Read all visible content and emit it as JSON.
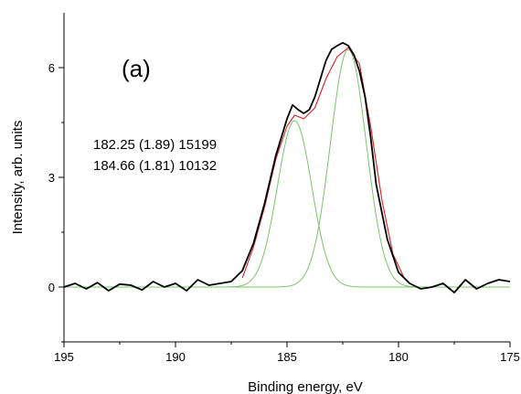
{
  "chart_data": {
    "type": "line",
    "panel_label": "(a)",
    "xlabel": "Binding energy, eV",
    "ylabel": "Intensity, arb. units",
    "xlim": [
      195,
      175
    ],
    "ylim": [
      -1.5,
      7.5
    ],
    "x_reversed": true,
    "x_ticks": [
      195,
      190,
      185,
      180,
      175
    ],
    "y_ticks": [
      0,
      3,
      6
    ],
    "annotations": [
      "182.25 (1.89) 15199",
      "184.66 (1.81) 10132"
    ],
    "grid": false,
    "peaks": [
      {
        "center": 182.25,
        "fwhm": 1.89,
        "area": 15199,
        "height": 6.5
      },
      {
        "center": 184.66,
        "fwhm": 1.81,
        "area": 10132,
        "height": 4.55
      }
    ],
    "series": [
      {
        "role": "experimental",
        "color": "#000000",
        "x": [
          195.0,
          194.5,
          194.0,
          193.5,
          193.0,
          192.5,
          192.0,
          191.5,
          191.0,
          190.5,
          190.0,
          189.5,
          189.0,
          188.5,
          188.0,
          187.5,
          187.0,
          186.5,
          186.0,
          185.5,
          185.0,
          184.75,
          184.5,
          184.25,
          184.0,
          183.75,
          183.5,
          183.25,
          183.0,
          182.75,
          182.5,
          182.25,
          182.0,
          181.75,
          181.5,
          181.25,
          181.0,
          180.5,
          180.0,
          179.5,
          179.0,
          178.5,
          178.0,
          177.5,
          177.0,
          176.5,
          176.0,
          175.5,
          175.0
        ],
        "y": [
          0.0,
          0.1,
          -0.05,
          0.12,
          -0.1,
          0.08,
          0.05,
          -0.08,
          0.15,
          0.0,
          0.1,
          -0.1,
          0.2,
          0.05,
          0.1,
          0.15,
          0.45,
          1.2,
          2.3,
          3.6,
          4.6,
          4.98,
          4.85,
          4.75,
          4.85,
          5.2,
          5.7,
          6.2,
          6.5,
          6.6,
          6.68,
          6.6,
          6.35,
          5.9,
          5.2,
          4.1,
          2.8,
          1.3,
          0.4,
          0.1,
          -0.05,
          0.0,
          0.1,
          -0.15,
          0.2,
          -0.05,
          0.1,
          0.2,
          0.15
        ]
      },
      {
        "role": "envelope",
        "color": "#d62020",
        "x": [
          187.0,
          186.5,
          186.0,
          185.5,
          185.0,
          184.66,
          184.25,
          183.75,
          183.25,
          182.75,
          182.25,
          181.75,
          181.25,
          180.75,
          180.25,
          179.75,
          179.5
        ],
        "y": [
          0.25,
          1.1,
          2.2,
          3.5,
          4.4,
          4.7,
          4.6,
          4.9,
          5.7,
          6.3,
          6.55,
          6.1,
          4.4,
          2.4,
          0.9,
          0.25,
          0.1
        ]
      }
    ]
  }
}
